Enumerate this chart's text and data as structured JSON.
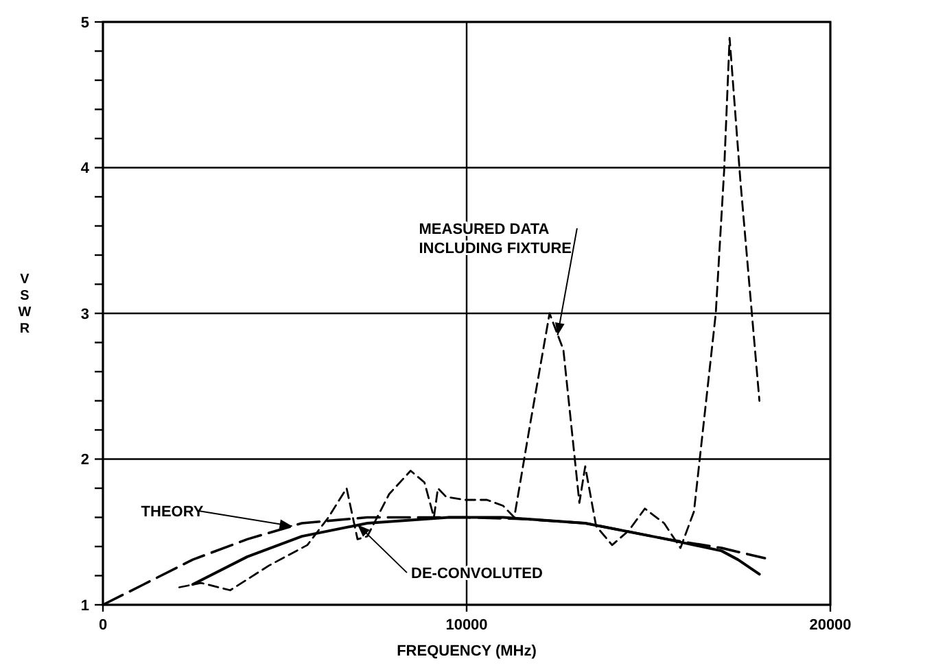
{
  "chart_data": {
    "type": "line",
    "xlabel": "FREQUENCY (MHz)",
    "ylabel": "VSWR",
    "xlim": [
      0,
      20000
    ],
    "ylim": [
      1,
      5
    ],
    "xticks": [
      0,
      10000,
      20000
    ],
    "yticks": [
      1,
      {
        "value": 1.2,
        "label": null
      },
      {
        "value": 1.4,
        "label": null
      },
      {
        "value": 1.6,
        "label": null
      },
      {
        "value": 1.8,
        "label": null
      },
      2,
      {
        "value": 2.2,
        "label": null
      },
      {
        "value": 2.4,
        "label": null
      },
      {
        "value": 2.6,
        "label": null
      },
      {
        "value": 2.8,
        "label": null
      },
      3,
      {
        "value": 3.2,
        "label": null
      },
      {
        "value": 3.4,
        "label": null
      },
      {
        "value": 3.6,
        "label": null
      },
      {
        "value": 3.8,
        "label": null
      },
      4,
      {
        "value": 4.2,
        "label": null
      },
      {
        "value": 4.4,
        "label": null
      },
      {
        "value": 4.6,
        "label": null
      },
      {
        "value": 4.8,
        "label": null
      },
      5
    ],
    "grid": true,
    "marker": "none",
    "annotations": [
      {
        "text": "MEASURED DATA INCLUDING FIXTURE",
        "x": 12500,
        "y": 2.85
      },
      {
        "text": "THEORY",
        "x": 5200,
        "y": 1.54
      },
      {
        "text": "DE-CONVOLUTED",
        "x": 7000,
        "y": 1.55
      }
    ],
    "series": [
      {
        "color": "#000000",
        "line_style": "dashed",
        "x": [
          2100,
          2700,
          3500,
          4570,
          5620,
          6200,
          6700,
          7000,
          7270,
          7870,
          8460,
          8840,
          9100,
          9210,
          9440,
          9960,
          10560,
          11000,
          11310,
          11760,
          12280,
          12660,
          13100,
          13260,
          13560,
          14000,
          14460,
          14900,
          15430,
          15880,
          16250,
          16850,
          17080,
          17230,
          17530,
          18050
        ],
        "values": [
          1.12,
          1.15,
          1.1,
          1.27,
          1.41,
          1.6,
          1.8,
          1.45,
          1.47,
          1.76,
          1.92,
          1.84,
          1.6,
          1.8,
          1.74,
          1.72,
          1.72,
          1.68,
          1.6,
          2.26,
          3.0,
          2.75,
          1.7,
          1.95,
          1.54,
          1.41,
          1.51,
          1.66,
          1.56,
          1.39,
          1.64,
          3.0,
          3.98,
          4.89,
          3.9,
          2.4
        ]
      },
      {
        "color": "#000000",
        "line_style": "long-dashed",
        "x": [
          0,
          1120,
          2470,
          3970,
          5470,
          7270,
          9960,
          11500,
          13260,
          15510,
          17010,
          18200
        ],
        "values": [
          1.0,
          1.14,
          1.31,
          1.45,
          1.56,
          1.6,
          1.6,
          1.59,
          1.56,
          1.45,
          1.39,
          1.32
        ]
      },
      {
        "color": "#000000",
        "line_style": "solid",
        "x": [
          2470,
          3970,
          5470,
          7270,
          9510,
          11000,
          13260,
          15510,
          17010,
          17460,
          18050
        ],
        "values": [
          1.14,
          1.33,
          1.47,
          1.56,
          1.6,
          1.6,
          1.56,
          1.45,
          1.37,
          1.31,
          1.21
        ]
      }
    ]
  }
}
